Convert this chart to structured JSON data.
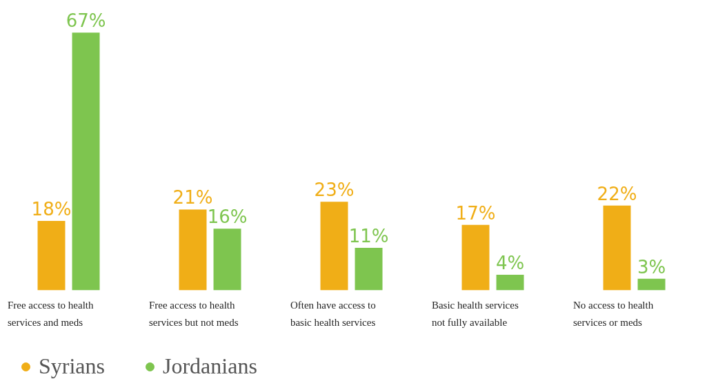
{
  "chart_data": {
    "type": "bar",
    "categories": [
      "Free access to health\nservices and meds",
      "Free access to health\nservices but not meds",
      "Often have access to\nbasic health services",
      "Basic health services\nnot fully available",
      "No access to health\nservices or meds"
    ],
    "series": [
      {
        "name": "Syrians",
        "color": "#f0ae17",
        "values": [
          18,
          21,
          23,
          17,
          22
        ],
        "value_labels": [
          "18%",
          "21%",
          "23%",
          "17%",
          "22%"
        ]
      },
      {
        "name": "Jordanians",
        "color": "#7ec54f",
        "values": [
          67,
          16,
          11,
          4,
          3
        ],
        "value_labels": [
          "67%",
          "16%",
          "11%",
          "4%",
          "3%"
        ]
      }
    ],
    "legend": "bottom left",
    "grid": false
  }
}
